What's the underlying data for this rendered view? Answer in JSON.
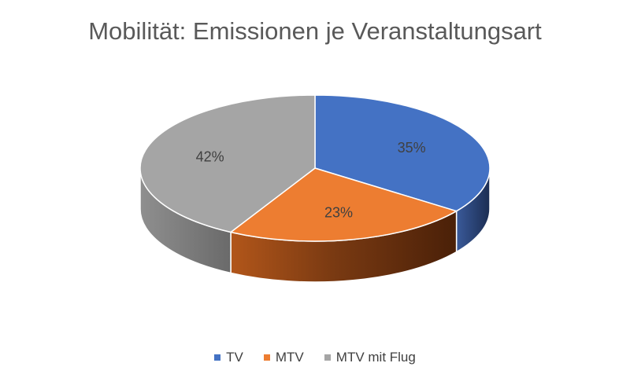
{
  "chart_data": {
    "type": "pie",
    "title": "Mobilität: Emissionen je Veranstaltungsart",
    "categories": [
      "TV",
      "MTV",
      "MTV mit Flug"
    ],
    "values": [
      35,
      23,
      42
    ],
    "labels": [
      "35%",
      "23%",
      "42%"
    ],
    "colors": [
      "#4472C4",
      "#ED7D31",
      "#A5A5A5"
    ],
    "legend_position": "bottom",
    "style": "3d"
  }
}
